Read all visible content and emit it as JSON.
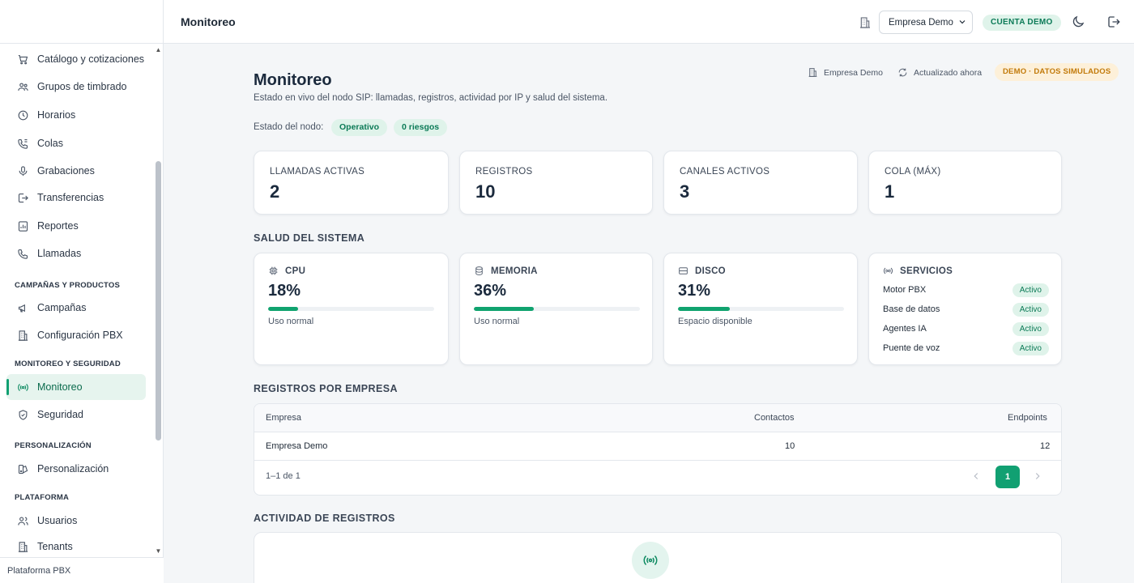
{
  "sidebar": {
    "items": [
      {
        "label": "Catálogo y cotizaciones",
        "icon": "cart-icon"
      },
      {
        "label": "Grupos de timbrado",
        "icon": "users-group-icon"
      },
      {
        "label": "Horarios",
        "icon": "clock-icon"
      },
      {
        "label": "Colas",
        "icon": "phone-queue-icon"
      },
      {
        "label": "Grabaciones",
        "icon": "microphone-icon"
      },
      {
        "label": "Transferencias",
        "icon": "transfer-icon"
      },
      {
        "label": "Reportes",
        "icon": "report-icon"
      },
      {
        "label": "Llamadas",
        "icon": "phone-icon"
      },
      {
        "label": "Campañas",
        "icon": "megaphone-icon"
      },
      {
        "label": "Configuración PBX",
        "icon": "building-icon"
      },
      {
        "label": "Monitoreo",
        "icon": "radio-icon",
        "active": true
      },
      {
        "label": "Seguridad",
        "icon": "shield-icon"
      },
      {
        "label": "Personalización",
        "icon": "palette-icon"
      },
      {
        "label": "Usuarios",
        "icon": "users-icon"
      },
      {
        "label": "Tenants",
        "icon": "building-icon"
      }
    ],
    "sections": {
      "campaigns": "CAMPAÑAS Y PRODUCTOS",
      "monitoring": "MONITOREO Y SEGURIDAD",
      "personalization": "PERSONALIZACIÓN",
      "platform": "PLATAFORMA"
    },
    "footer": "Plataforma PBX"
  },
  "header": {
    "title": "Monitoreo",
    "company_select": "Empresa Demo",
    "demo_badge": "CUENTA DEMO"
  },
  "page": {
    "title": "Monitoreo",
    "subtitle": "Estado en vivo del nodo SIP: llamadas, registros, actividad por IP y salud del sistema.",
    "company": "Empresa Demo",
    "updated": "Actualizado ahora",
    "sim_badge": "DEMO · DATOS SIMULADOS",
    "node_label": "Estado del nodo:",
    "node_status": "Operativo",
    "node_risks": "0 riesgos"
  },
  "stats": [
    {
      "label": "LLAMADAS ACTIVAS",
      "value": "2"
    },
    {
      "label": "REGISTROS",
      "value": "10"
    },
    {
      "label": "CANALES ACTIVOS",
      "value": "3"
    },
    {
      "label": "COLA (MÁX)",
      "value": "1"
    }
  ],
  "health": {
    "title": "SALUD DEL SISTEMA",
    "cpu": {
      "label": "CPU",
      "value": "18%",
      "percent": 18,
      "note": "Uso normal"
    },
    "memory": {
      "label": "MEMORIA",
      "value": "36%",
      "percent": 36,
      "note": "Uso normal"
    },
    "disk": {
      "label": "DISCO",
      "value": "31%",
      "percent": 31,
      "note": "Espacio disponible"
    },
    "services": {
      "label": "SERVICIOS",
      "items": [
        {
          "name": "Motor PBX",
          "status": "Activo"
        },
        {
          "name": "Base de datos",
          "status": "Activo"
        },
        {
          "name": "Agentes IA",
          "status": "Activo"
        },
        {
          "name": "Puente de voz",
          "status": "Activo"
        }
      ]
    }
  },
  "registrations": {
    "title": "REGISTROS POR EMPRESA",
    "columns": [
      "Empresa",
      "Contactos",
      "Endpoints"
    ],
    "rows": [
      {
        "company": "Empresa Demo",
        "contacts": "10",
        "endpoints": "12"
      }
    ],
    "pagination": "1–1 de 1",
    "page": "1"
  },
  "activity": {
    "title": "ACTIVIDAD DE REGISTROS"
  },
  "colors": {
    "accent": "#11a072",
    "accent_soft": "#dff3ea",
    "warning_soft": "#fdf0d9",
    "warning_text": "#c27a0a"
  }
}
